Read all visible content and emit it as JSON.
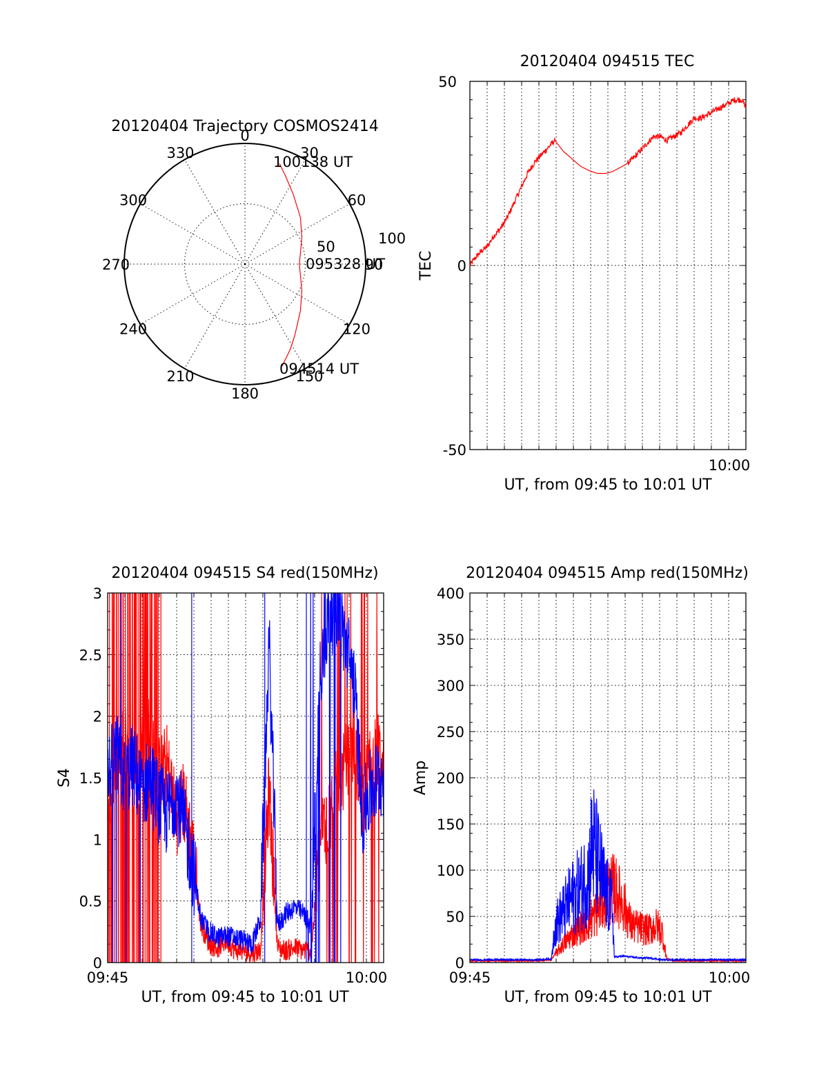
{
  "chart_data": [
    {
      "id": "polar",
      "type": "scatter",
      "title": "20120404 Trajectory COSMOS2414",
      "azimuth_labels": [
        "0",
        "30",
        "60",
        "90",
        "120",
        "150",
        "180",
        "210",
        "240",
        "270",
        "300",
        "330"
      ],
      "elevation_ring_labels": [
        "50",
        "100"
      ],
      "point_labels": [
        {
          "text": "100138 UT",
          "az": 18,
          "el": 13
        },
        {
          "text": "095328 UT",
          "az": 90,
          "el": 57
        },
        {
          "text": "094514 UT",
          "az": 160,
          "el": 8
        }
      ],
      "trajectory": {
        "az": [
          19,
          25,
          35,
          50,
          65,
          78,
          90,
          102,
          115,
          130,
          145,
          152,
          160
        ],
        "el": [
          12,
          20,
          30,
          40,
          48,
          53,
          55,
          53,
          48,
          40,
          28,
          20,
          10
        ]
      },
      "color": "#ff0000"
    },
    {
      "id": "tec",
      "type": "line",
      "title": "20120404 094515 TEC",
      "ylabel": "TEC",
      "xlabel": "UT, from 09:45 to 10:01 UT",
      "xlim": [
        0,
        16.25
      ],
      "ylim": [
        -50,
        50
      ],
      "yticks": [
        "50",
        "0",
        "-50"
      ],
      "xticks": [
        {
          "label": "10:00",
          "value": 15
        }
      ],
      "series": [
        {
          "color": "#ff0000",
          "x": [
            0,
            0.3,
            0.7,
            1.0,
            1.4,
            1.8,
            2.2,
            2.6,
            3.0,
            3.4,
            3.8,
            4.2,
            4.6,
            5.0,
            5.5,
            6.0,
            6.5,
            7.0,
            7.5,
            8.0,
            8.4,
            8.8,
            9.2,
            9.6,
            10.0,
            10.4,
            10.8,
            11.2,
            11.6,
            12.0,
            12.4,
            12.8,
            13.2,
            13.6,
            14.0,
            14.4,
            14.8,
            15.2,
            15.6,
            16.0,
            16.25
          ],
          "y": [
            0,
            2,
            4,
            5,
            8,
            10,
            13,
            17,
            21,
            25,
            28,
            30,
            32,
            34,
            31,
            29,
            27,
            25.8,
            25,
            25,
            25.5,
            26.5,
            27.5,
            29,
            31,
            33,
            35,
            35,
            34,
            35,
            36,
            38,
            40,
            40,
            41,
            42,
            43,
            44,
            45,
            45,
            43
          ]
        }
      ]
    },
    {
      "id": "s4",
      "type": "line",
      "title": "20120404 094515 S4 red(150MHz)",
      "ylabel": "S4",
      "xlabel": "UT, from 09:45 to 10:01 UT",
      "xlim": [
        0,
        16.25
      ],
      "ylim": [
        0,
        3
      ],
      "yticks": [
        "0",
        "0.5",
        "1",
        "1.5",
        "2",
        "2.5",
        "3"
      ],
      "xticks": [
        {
          "label": "09:45",
          "value": 0
        },
        {
          "label": "10:00",
          "value": 15
        }
      ],
      "series": [
        {
          "color": "#ff0000",
          "x": [
            0,
            0.5,
            1.0,
            1.5,
            2.0,
            2.5,
            3.0,
            3.5,
            4.0,
            4.5,
            5.0,
            5.5,
            6.0,
            6.5,
            7.0,
            7.5,
            8.0,
            8.5,
            9.0,
            9.5,
            10.0,
            10.5,
            11.0,
            11.5,
            12.0,
            12.5,
            13.0,
            13.5,
            14.0,
            14.5,
            15.0,
            15.5,
            16.0
          ],
          "y": [
            1.3,
            1.6,
            1.8,
            1.4,
            1.7,
            1.9,
            1.5,
            1.6,
            1.2,
            1.3,
            0.9,
            0.3,
            0.15,
            0.12,
            0.18,
            0.1,
            0.1,
            0.08,
            0.1,
            1.4,
            0.12,
            0.1,
            0.12,
            0.1,
            0.1,
            1.0,
            1.2,
            1.4,
            1.6,
            1.8,
            1.3,
            1.6,
            1.7
          ]
        },
        {
          "color": "#0000ff",
          "x": [
            0,
            0.5,
            1.0,
            1.5,
            2.0,
            2.5,
            3.0,
            3.5,
            4.0,
            4.5,
            5.0,
            5.5,
            6.0,
            6.5,
            7.0,
            7.5,
            8.0,
            8.5,
            9.0,
            9.5,
            10.0,
            10.5,
            11.0,
            11.5,
            12.0,
            12.5,
            13.0,
            13.5,
            14.0,
            14.5,
            15.0,
            15.5,
            16.0
          ],
          "y": [
            1.5,
            1.7,
            1.5,
            1.6,
            1.4,
            1.5,
            1.3,
            1.2,
            1.4,
            1.1,
            0.8,
            0.35,
            0.25,
            0.2,
            0.22,
            0.2,
            0.18,
            0.15,
            0.35,
            2.6,
            0.3,
            0.4,
            0.45,
            0.4,
            0.3,
            2.4,
            2.8,
            2.9,
            2.6,
            2.3,
            1.2,
            1.4,
            1.5
          ]
        }
      ]
    },
    {
      "id": "amp",
      "type": "line",
      "title": "20120404 094515 Amp red(150MHz)",
      "ylabel": "Amp",
      "xlabel": "UT, from 09:45 to 10:01 UT",
      "xlim": [
        0,
        16.25
      ],
      "ylim": [
        0,
        400
      ],
      "yticks": [
        "0",
        "50",
        "100",
        "150",
        "200",
        "250",
        "300",
        "350",
        "400"
      ],
      "xticks": [
        {
          "label": "09:45",
          "value": 0
        },
        {
          "label": "10:00",
          "value": 15
        }
      ],
      "series": [
        {
          "color": "#ff0000",
          "x": [
            0,
            1,
            2,
            3,
            4,
            4.8,
            5.0,
            5.5,
            6.0,
            6.5,
            7.0,
            7.5,
            8.0,
            8.5,
            9.0,
            9.5,
            10.0,
            10.5,
            11.0,
            11.3,
            11.6,
            12,
            13,
            14,
            15,
            16.25
          ],
          "y": [
            1,
            1,
            1,
            1,
            1,
            2,
            8,
            20,
            30,
            38,
            45,
            55,
            75,
            80,
            65,
            40,
            38,
            35,
            40,
            35,
            3,
            1,
            1,
            1,
            1,
            1
          ]
        },
        {
          "color": "#0000ff",
          "x": [
            0,
            1,
            2,
            3,
            4,
            4.8,
            5.0,
            5.5,
            6.0,
            6.5,
            7.0,
            7.2,
            7.5,
            8.0,
            8.4,
            8.5,
            9.0,
            9.5,
            10.0,
            10.5,
            11.0,
            11.3,
            11.6,
            12,
            13,
            14,
            15,
            16.25
          ],
          "y": [
            2,
            2,
            2,
            2,
            2,
            3,
            40,
            55,
            70,
            80,
            95,
            130,
            110,
            75,
            60,
            5,
            6,
            5,
            4,
            4,
            3,
            2,
            2,
            2,
            2,
            2,
            2,
            2
          ]
        }
      ]
    }
  ]
}
